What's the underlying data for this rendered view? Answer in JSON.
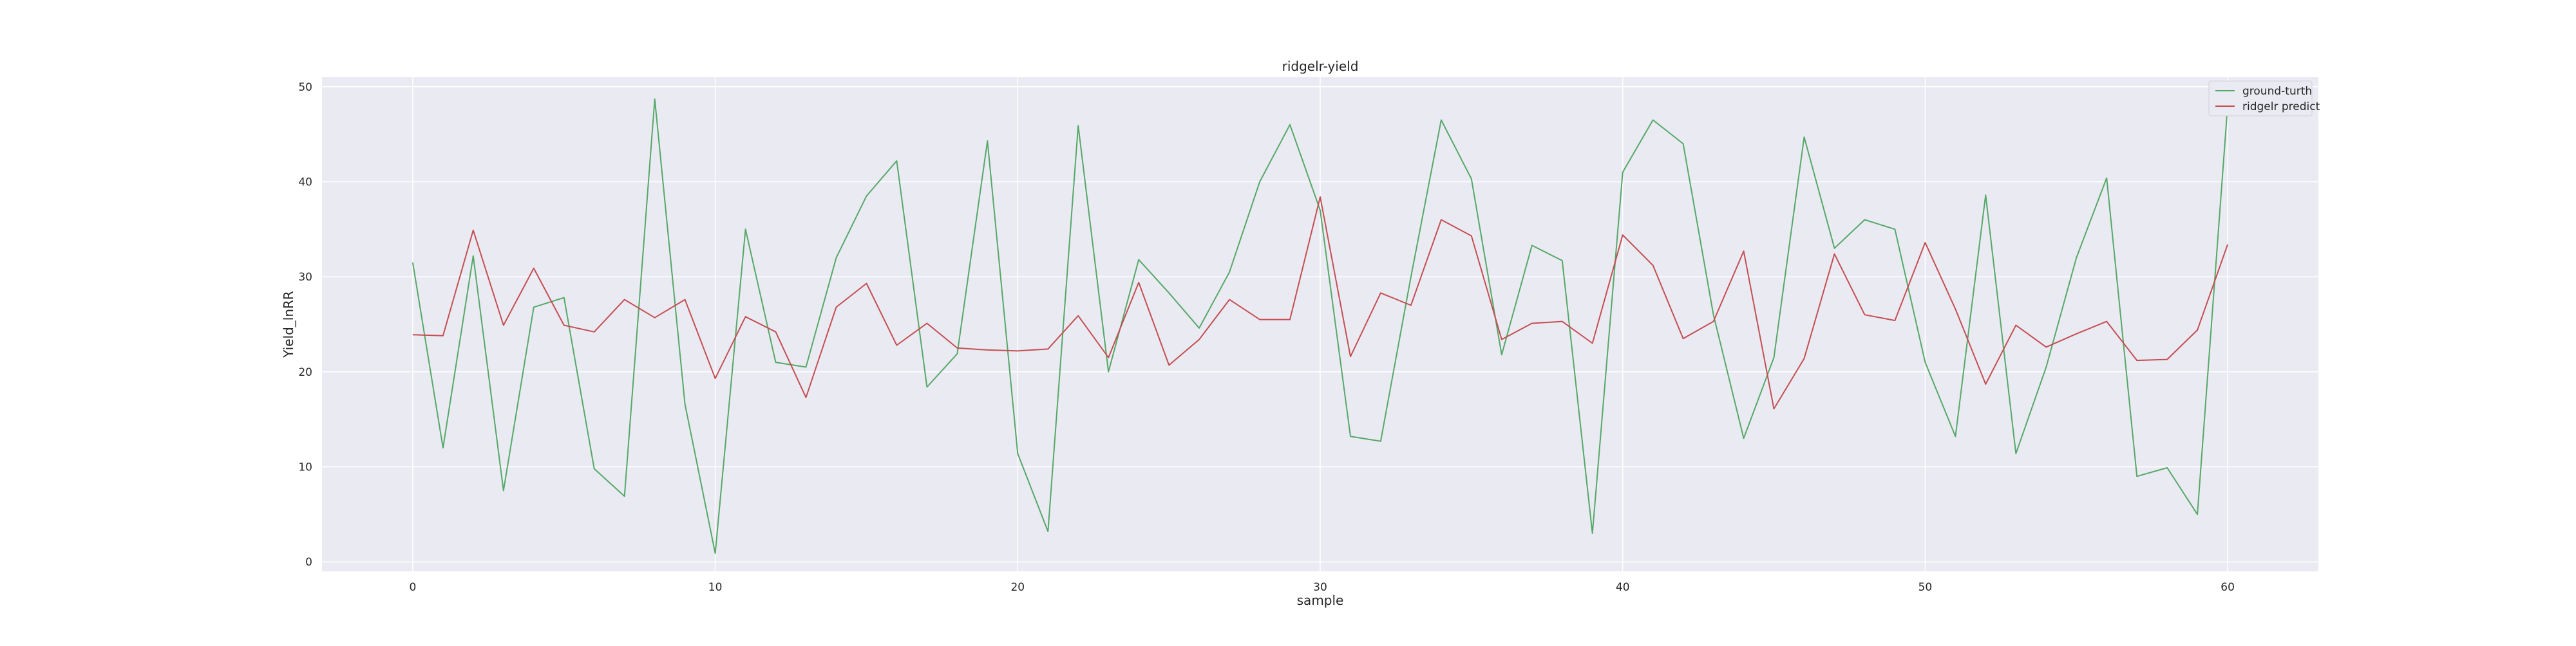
{
  "chart_data": {
    "type": "line",
    "title": "ridgelr-yield",
    "xlabel": "sample",
    "ylabel": "Yield_lnRR",
    "xlim": [
      -3,
      63
    ],
    "ylim": [
      -1,
      51
    ],
    "xticks": [
      0,
      10,
      20,
      30,
      40,
      50,
      60
    ],
    "yticks": [
      0,
      10,
      20,
      30,
      40,
      50
    ],
    "grid": true,
    "legend_position": "upper-right",
    "x": [
      0,
      1,
      2,
      3,
      4,
      5,
      6,
      7,
      8,
      9,
      10,
      11,
      12,
      13,
      14,
      15,
      16,
      17,
      18,
      19,
      20,
      21,
      22,
      23,
      24,
      25,
      26,
      27,
      28,
      29,
      30,
      31,
      32,
      33,
      34,
      35,
      36,
      37,
      38,
      39,
      40,
      41,
      42,
      43,
      44,
      45,
      46,
      47,
      48,
      49,
      50,
      51,
      52,
      53,
      54,
      55,
      56,
      57,
      58,
      59,
      60
    ],
    "series": [
      {
        "name": "ground-turth",
        "color": "#55a868",
        "values": [
          31.5,
          12.0,
          32.2,
          7.5,
          26.8,
          27.8,
          9.8,
          6.9,
          48.7,
          16.6,
          0.9,
          35.0,
          21.0,
          20.5,
          32.0,
          38.5,
          42.2,
          18.4,
          21.9,
          44.3,
          11.4,
          3.2,
          45.9,
          20.0,
          31.8,
          28.3,
          24.6,
          30.5,
          40.0,
          46.0,
          37.0,
          13.2,
          12.7,
          30.0,
          46.5,
          40.3,
          21.8,
          33.3,
          31.7,
          3.0,
          41.0,
          46.5,
          44.0,
          26.0,
          13.0,
          21.5,
          44.7,
          33.0,
          36.0,
          35.0,
          21.0,
          13.2,
          38.6,
          11.4,
          20.5,
          32.0,
          40.4,
          9.0,
          9.9,
          5.0,
          48.0
        ]
      },
      {
        "name": "ridgelr predict",
        "color": "#c44e52",
        "values": [
          23.9,
          23.8,
          34.9,
          24.9,
          30.9,
          24.9,
          24.2,
          27.6,
          25.7,
          27.6,
          19.3,
          25.8,
          24.2,
          17.3,
          26.8,
          29.3,
          22.8,
          25.1,
          22.5,
          22.3,
          22.2,
          22.4,
          25.9,
          21.5,
          29.4,
          20.7,
          23.4,
          27.6,
          25.5,
          25.5,
          38.4,
          21.6,
          28.3,
          27.0,
          36.0,
          34.3,
          23.4,
          25.1,
          25.3,
          23.0,
          34.4,
          31.2,
          23.5,
          25.3,
          32.7,
          16.1,
          21.4,
          32.4,
          26.0,
          25.4,
          33.6,
          26.6,
          18.7,
          24.9,
          22.6,
          24.0,
          25.3,
          21.2,
          21.3,
          24.4,
          33.4
        ]
      }
    ]
  }
}
